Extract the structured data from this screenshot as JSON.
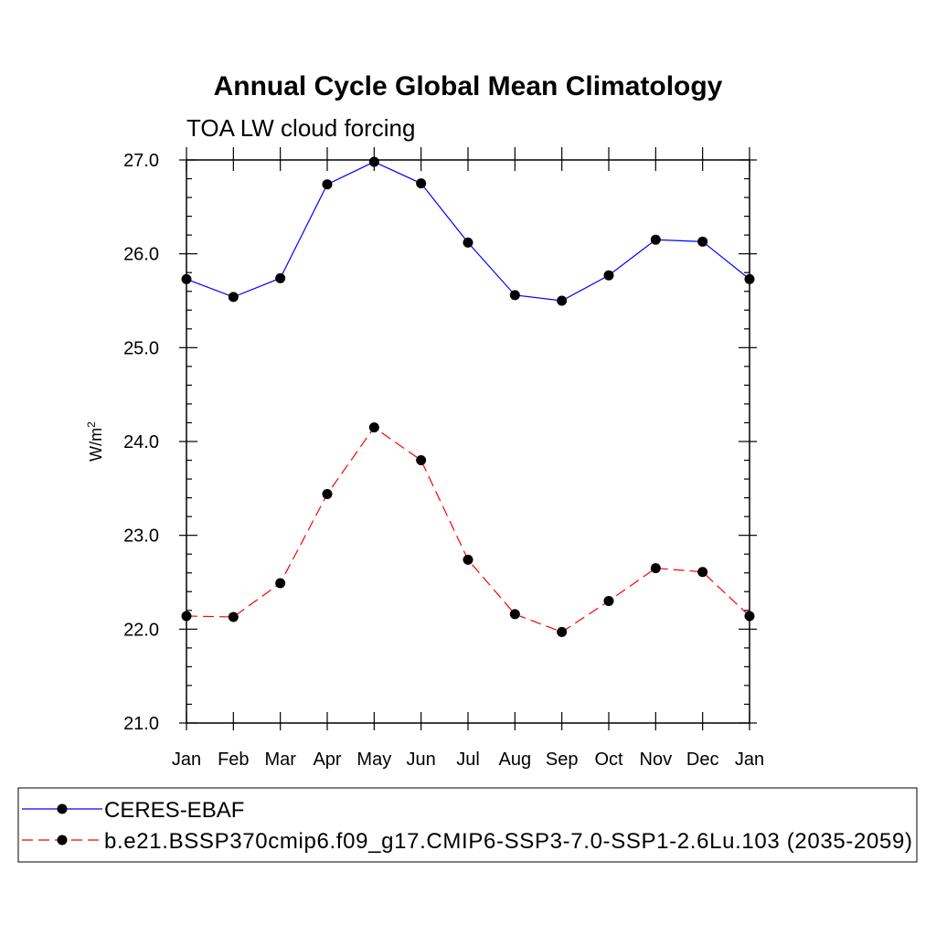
{
  "chart_data": {
    "type": "line",
    "title": "Annual Cycle Global Mean Climatology",
    "subtitle": "TOA LW cloud forcing",
    "ylabel": "W/m",
    "ylabel_sup": "2",
    "xlabel": "",
    "ylim": [
      21.0,
      27.0
    ],
    "y_ticks": [
      "21.0",
      "22.0",
      "23.0",
      "24.0",
      "25.0",
      "26.0",
      "27.0"
    ],
    "categories": [
      "Jan",
      "Feb",
      "Mar",
      "Apr",
      "May",
      "Jun",
      "Jul",
      "Aug",
      "Sep",
      "Oct",
      "Nov",
      "Dec",
      "Jan"
    ],
    "series": [
      {
        "name": "CERES-EBAF",
        "color": "#0000ff",
        "dash": "solid",
        "values": [
          25.73,
          25.54,
          25.74,
          26.74,
          26.98,
          26.75,
          26.12,
          25.56,
          25.5,
          25.77,
          26.15,
          26.13,
          25.73
        ]
      },
      {
        "name": "b.e21.BSSP370cmip6.f09_g17.CMIP6-SSP3-7.0-SSP1-2.6Lu.103 (2035-2059)",
        "color": "#ff0000",
        "dash": "dashed",
        "values": [
          22.14,
          22.13,
          22.49,
          23.44,
          24.15,
          23.8,
          22.74,
          22.16,
          21.97,
          22.3,
          22.65,
          22.61,
          22.14
        ]
      }
    ],
    "grid": false,
    "legend_placement": "bottom"
  }
}
